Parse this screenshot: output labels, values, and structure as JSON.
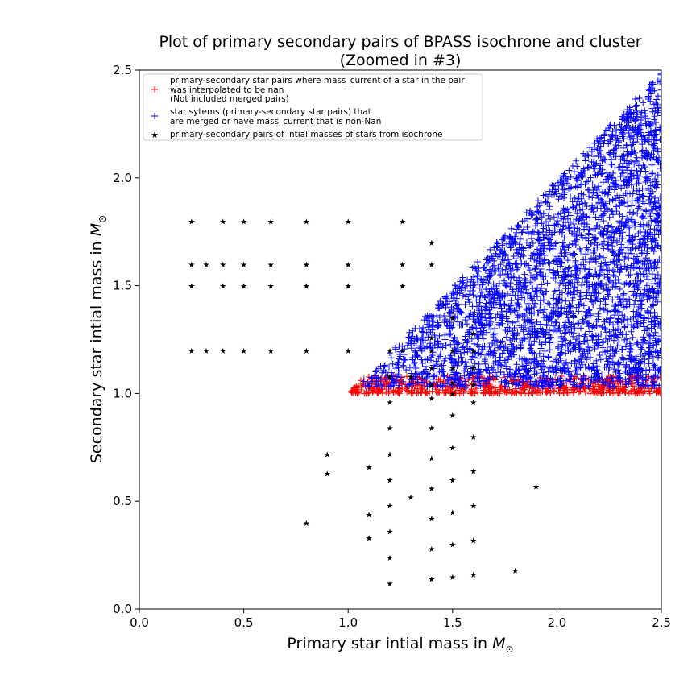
{
  "chart_data": {
    "type": "scatter",
    "title_line1": "Plot of primary secondary pairs of BPASS isochrone and cluster",
    "title_line2": "(Zoomed in #3)",
    "xlabel_text": "Primary star intial mass in ",
    "ylabel_text": "Secondary star intial mass in ",
    "axis_unit": "M⊙",
    "xlim": [
      0.0,
      2.5
    ],
    "ylim": [
      0.0,
      2.5
    ],
    "xticks": [
      "0.0",
      "0.5",
      "1.0",
      "1.5",
      "2.0",
      "2.5"
    ],
    "yticks": [
      "0.0",
      "0.5",
      "1.0",
      "1.5",
      "2.0",
      "2.5"
    ],
    "xtick_values": [
      0.0,
      0.5,
      1.0,
      1.5,
      2.0,
      2.5
    ],
    "ytick_values": [
      0.0,
      0.5,
      1.0,
      1.5,
      2.0,
      2.5
    ],
    "grid": false,
    "legend_position": "top-left",
    "colors": {
      "red": "#ff0000",
      "blue": "#0000ff",
      "black": "#000000"
    },
    "series": [
      {
        "name": "primary-secondary star pairs where mass_current of a star in the pair\n was interpolated to be nan\n (Not included merged pairs)",
        "marker": "+",
        "color": "#ff0000",
        "region": {
          "x": [
            1.0,
            2.5
          ],
          "y": [
            1.0,
            1.08
          ],
          "constraint": "y <= x",
          "count": 650
        }
      },
      {
        "name": "star sytems (primary-secondary star pairs) that\nare merged or have mass_current that is non-Nan",
        "marker": "+",
        "color": "#0000ff",
        "region": {
          "x": [
            1.05,
            2.5
          ],
          "y": [
            1.03,
            2.5
          ],
          "constraint": "y <= x",
          "count": 3200
        }
      },
      {
        "name": "primary-secondary pairs of intial masses of stars from isochrone",
        "marker": "*",
        "color": "#000000",
        "points": [
          [
            0.25,
            1.8
          ],
          [
            0.4,
            1.8
          ],
          [
            0.5,
            1.8
          ],
          [
            0.63,
            1.8
          ],
          [
            0.8,
            1.8
          ],
          [
            1.0,
            1.8
          ],
          [
            1.26,
            1.8
          ],
          [
            1.4,
            1.7
          ],
          [
            0.25,
            1.6
          ],
          [
            0.32,
            1.6
          ],
          [
            0.4,
            1.6
          ],
          [
            0.5,
            1.6
          ],
          [
            0.63,
            1.6
          ],
          [
            0.8,
            1.6
          ],
          [
            1.0,
            1.6
          ],
          [
            1.26,
            1.6
          ],
          [
            1.4,
            1.6
          ],
          [
            0.25,
            1.5
          ],
          [
            0.4,
            1.5
          ],
          [
            0.5,
            1.5
          ],
          [
            0.63,
            1.5
          ],
          [
            0.8,
            1.5
          ],
          [
            1.0,
            1.5
          ],
          [
            1.26,
            1.5
          ],
          [
            0.25,
            1.2
          ],
          [
            0.32,
            1.2
          ],
          [
            0.4,
            1.2
          ],
          [
            0.5,
            1.2
          ],
          [
            0.63,
            1.2
          ],
          [
            0.8,
            1.2
          ],
          [
            1.0,
            1.2
          ],
          [
            1.2,
            1.2
          ],
          [
            1.26,
            1.2
          ],
          [
            1.4,
            1.2
          ],
          [
            1.5,
            1.2
          ],
          [
            1.6,
            1.2
          ],
          [
            1.4,
            1.26
          ],
          [
            1.5,
            1.35
          ],
          [
            1.6,
            1.28
          ],
          [
            1.5,
            1.05
          ],
          [
            1.5,
            1.12
          ],
          [
            1.6,
            1.12
          ],
          [
            1.4,
            1.12
          ],
          [
            1.2,
            1.08
          ],
          [
            1.3,
            1.08
          ],
          [
            1.4,
            1.04
          ],
          [
            1.5,
            1.0
          ],
          [
            1.6,
            1.04
          ],
          [
            1.2,
            0.96
          ],
          [
            1.4,
            0.98
          ],
          [
            1.6,
            0.96
          ],
          [
            1.2,
            0.84
          ],
          [
            1.4,
            0.84
          ],
          [
            1.5,
            0.9
          ],
          [
            1.6,
            0.8
          ],
          [
            0.9,
            0.72
          ],
          [
            1.2,
            0.72
          ],
          [
            1.4,
            0.7
          ],
          [
            1.5,
            0.75
          ],
          [
            0.9,
            0.63
          ],
          [
            1.1,
            0.66
          ],
          [
            1.2,
            0.6
          ],
          [
            1.4,
            0.56
          ],
          [
            1.5,
            0.6
          ],
          [
            1.6,
            0.64
          ],
          [
            1.9,
            0.57
          ],
          [
            1.3,
            0.52
          ],
          [
            1.2,
            0.48
          ],
          [
            1.5,
            0.45
          ],
          [
            1.6,
            0.48
          ],
          [
            0.8,
            0.4
          ],
          [
            1.1,
            0.44
          ],
          [
            1.4,
            0.42
          ],
          [
            1.2,
            0.36
          ],
          [
            1.1,
            0.33
          ],
          [
            1.5,
            0.3
          ],
          [
            1.6,
            0.32
          ],
          [
            1.4,
            0.28
          ],
          [
            1.2,
            0.24
          ],
          [
            1.8,
            0.18
          ],
          [
            1.4,
            0.14
          ],
          [
            1.5,
            0.15
          ],
          [
            1.6,
            0.16
          ],
          [
            1.2,
            0.12
          ]
        ]
      }
    ]
  }
}
